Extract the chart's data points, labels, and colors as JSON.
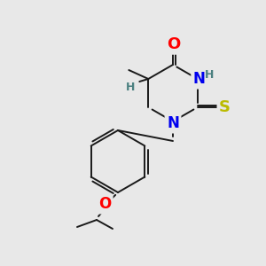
{
  "background_color": "#e8e8e8",
  "bond_color": "#1a1a1a",
  "atom_colors": {
    "O": "#ff0000",
    "N": "#0000ee",
    "S": "#bbbb00",
    "H": "#4a8080",
    "C": "#1a1a1a"
  },
  "font_size_atom": 11,
  "font_size_h": 9,
  "figsize": [
    3.0,
    3.0
  ],
  "dpi": 100
}
